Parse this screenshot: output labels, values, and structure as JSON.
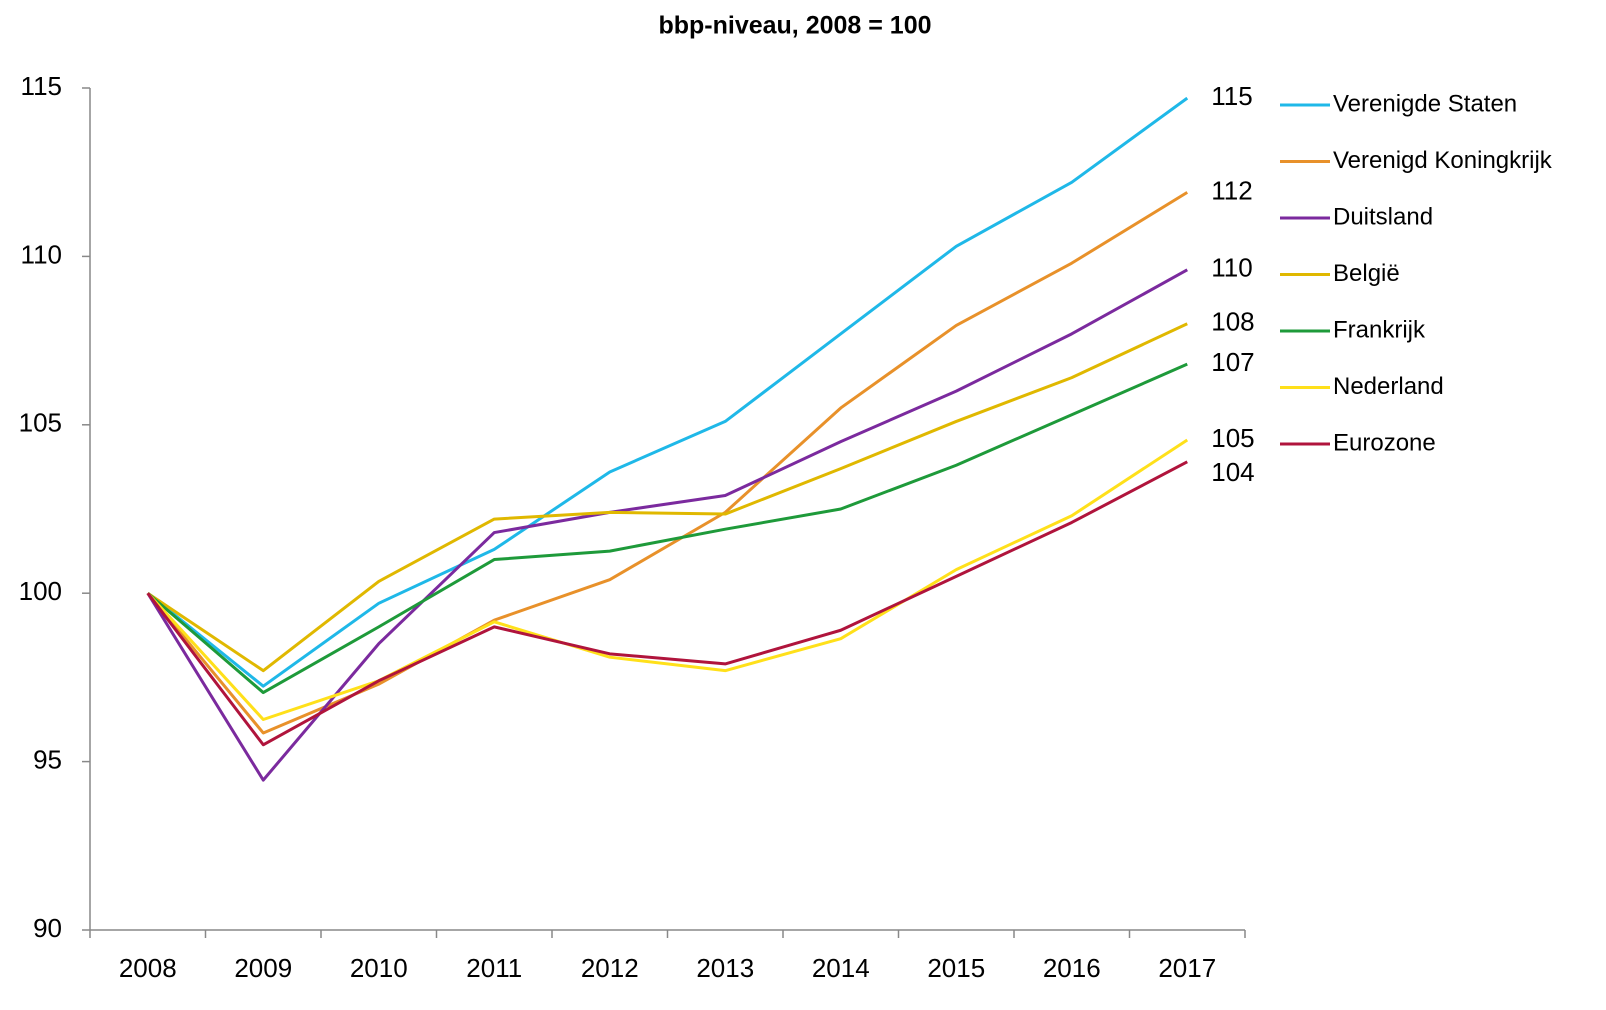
{
  "chart_data": {
    "type": "line",
    "title": "bbp-niveau, 2008 = 100",
    "categories": [
      "2008",
      "2009",
      "2010",
      "2011",
      "2012",
      "2013",
      "2014",
      "2015",
      "2016",
      "2017"
    ],
    "ylim": [
      90,
      115
    ],
    "yticks": [
      90,
      95,
      100,
      105,
      110,
      115
    ],
    "legend": "right",
    "series": [
      {
        "name": "Verenigde Staten",
        "color": "#1fb8e8",
        "values": [
          100,
          97.24,
          99.7,
          101.3,
          103.6,
          105.1,
          107.7,
          110.3,
          112.2,
          114.7
        ],
        "value_labels": [
          null,
          null,
          null,
          null,
          null,
          null,
          null,
          null,
          null,
          "115"
        ]
      },
      {
        "name": "Verenigd Koningkrijk",
        "color": "#e8912a",
        "values": [
          100,
          95.85,
          97.3,
          99.2,
          100.4,
          102.4,
          105.5,
          107.95,
          109.8,
          111.9
        ],
        "value_labels": [
          null,
          null,
          null,
          null,
          null,
          null,
          null,
          null,
          null,
          "112"
        ]
      },
      {
        "name": "Duitsland",
        "color": "#7b2a9e",
        "values": [
          100,
          94.45,
          98.5,
          101.8,
          102.4,
          102.9,
          104.5,
          106.0,
          107.7,
          109.6
        ],
        "value_labels": [
          null,
          null,
          null,
          null,
          null,
          null,
          null,
          null,
          null,
          "110"
        ]
      },
      {
        "name": "België",
        "color": "#e0b800",
        "values": [
          100,
          97.7,
          100.35,
          102.2,
          102.4,
          102.35,
          103.7,
          105.1,
          106.4,
          108.0
        ],
        "value_labels": [
          null,
          null,
          null,
          null,
          null,
          null,
          null,
          null,
          null,
          "108"
        ]
      },
      {
        "name": "Frankrijk",
        "color": "#1e9a3a",
        "values": [
          100,
          97.05,
          99.0,
          101.0,
          101.25,
          101.9,
          102.5,
          103.8,
          105.3,
          106.8
        ],
        "value_labels": [
          null,
          null,
          null,
          null,
          null,
          null,
          null,
          null,
          null,
          "107"
        ]
      },
      {
        "name": "Nederland",
        "color": "#ffe01a",
        "values": [
          100,
          96.25,
          97.4,
          99.15,
          98.1,
          97.7,
          98.65,
          100.7,
          102.3,
          104.55
        ],
        "value_labels": [
          null,
          null,
          null,
          null,
          null,
          null,
          null,
          null,
          null,
          "105"
        ]
      },
      {
        "name": "Eurozone",
        "color": "#b0143c",
        "values": [
          100,
          95.5,
          97.4,
          99.0,
          98.2,
          97.9,
          98.9,
          100.5,
          102.1,
          103.9
        ],
        "value_labels": [
          null,
          null,
          null,
          null,
          null,
          null,
          null,
          null,
          null,
          "104"
        ]
      }
    ]
  }
}
